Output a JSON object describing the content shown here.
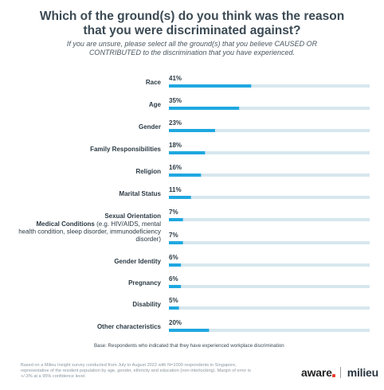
{
  "header": {
    "title_line1": "Which of the ground(s) do you think was the reason",
    "title_line2": "that you were discriminated against?",
    "subtitle_line1": "If you are unsure, please select all the ground(s) that you believe CAUSED OR",
    "subtitle_line2": "CONTRIBUTED to the discrimination that you have experienced."
  },
  "chart_data": {
    "type": "bar",
    "orientation": "horizontal",
    "categories": [
      "Race",
      "Age",
      "Gender",
      "Family Responsibilities",
      "Religion",
      "Marital Status",
      "Sexual Orientation",
      "Medical Conditions",
      "Gender Identity",
      "Pregnancy",
      "Disability",
      "Other characteristics"
    ],
    "category_notes": [
      "",
      "",
      "",
      "",
      "",
      "",
      "",
      "(e.g. HIV/AIDS, mental health condition, sleep disorder, immunodeficiency disorder)",
      "",
      "",
      "",
      ""
    ],
    "values": [
      41,
      35,
      23,
      18,
      16,
      11,
      7,
      7,
      6,
      6,
      5,
      20
    ],
    "value_labels": [
      "41%",
      "35%",
      "23%",
      "18%",
      "16%",
      "11%",
      "7%",
      "7%",
      "6%",
      "6%",
      "5%",
      "20%"
    ],
    "xlim": [
      0,
      100
    ],
    "grid": false,
    "legend": "none",
    "colors": {
      "bar": "#1fa8e0",
      "track": "#d7e7ee",
      "label": "#2b3a44"
    }
  },
  "footer": {
    "base": "Base: Respondents who indicated that they have experienced workplace discrimination",
    "note_line1": "Based on a Milieu Insight survey conducted from July to August 2022 with N=1000 respondents  in Singapore,",
    "note_line2": "representative of the resident population by age, gender, ethnicity and education (non-interlocking). Margin of error is",
    "note_line3": "+/-3% at a 95% confidence level.",
    "logo_aware": "aware",
    "logo_milieu": "milieu"
  }
}
